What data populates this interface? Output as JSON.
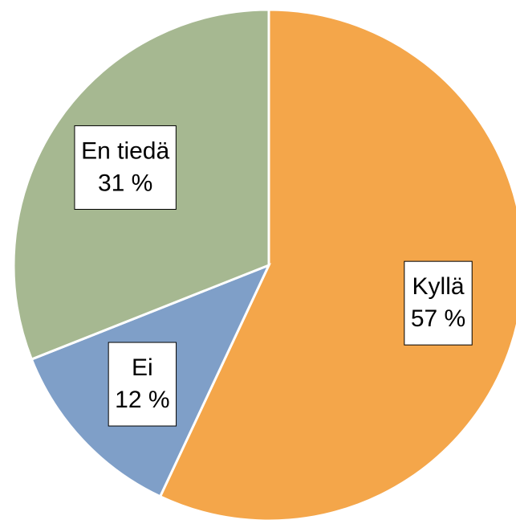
{
  "chart_data": {
    "type": "pie",
    "categories": [
      "Kyllä",
      "Ei",
      "En tiedä"
    ],
    "values": [
      57,
      12,
      31
    ],
    "value_labels": [
      "57 %",
      "12 %",
      "31 %"
    ],
    "colors": [
      "#f4a64a",
      "#7f9fc8",
      "#a6b891"
    ]
  }
}
